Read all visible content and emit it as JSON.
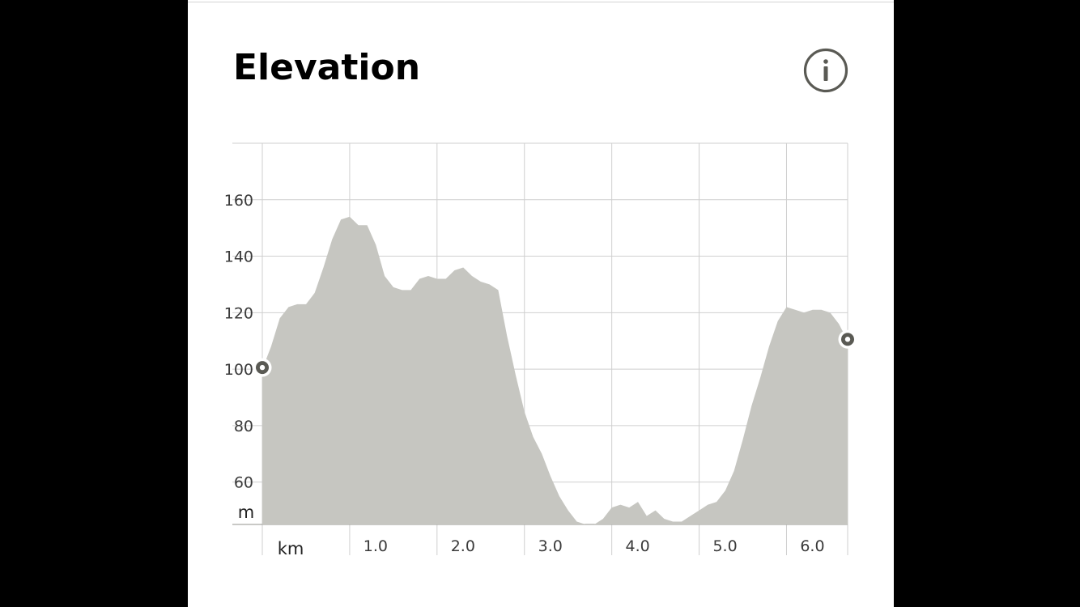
{
  "header": {
    "title": "Elevation",
    "info_icon": "info-circle-icon"
  },
  "colors": {
    "background": "#000000",
    "panel": "#ffffff",
    "area_fill": "#c6c6c1",
    "grid": "#cfcfcf",
    "icon": "#5a5a54"
  },
  "chart_data": {
    "type": "area",
    "title": "",
    "xlabel": "km",
    "ylabel": "m",
    "x_ticks": [
      "1.0",
      "2.0",
      "3.0",
      "4.0",
      "5.0",
      "6.0"
    ],
    "y_ticks": [
      "60",
      "80",
      "100",
      "120",
      "140",
      "160"
    ],
    "xlim": [
      0,
      6.7
    ],
    "ylim": [
      45,
      180
    ],
    "grid": true,
    "markers": [
      "start",
      "end"
    ],
    "series": [
      {
        "x": [
          0,
          0.1,
          0.2,
          0.3,
          0.4,
          0.5,
          0.6,
          0.7,
          0.8,
          0.9,
          1.0,
          1.1,
          1.2,
          1.3,
          1.4,
          1.5,
          1.6,
          1.7,
          1.8,
          1.9,
          2.0,
          2.1,
          2.2,
          2.3,
          2.4,
          2.5,
          2.6,
          2.7,
          2.8,
          2.9,
          3.0,
          3.1,
          3.2,
          3.3,
          3.4,
          3.5,
          3.6,
          3.7,
          3.8,
          3.9,
          4.0,
          4.1,
          4.2,
          4.3,
          4.4,
          4.5,
          4.6,
          4.7,
          4.8,
          4.9,
          5.0,
          5.1,
          5.2,
          5.3,
          5.4,
          5.5,
          5.6,
          5.7,
          5.8,
          5.9,
          6.0,
          6.1,
          6.2,
          6.3,
          6.4,
          6.5,
          6.6,
          6.7
        ],
        "y": [
          100,
          108,
          118,
          122,
          123,
          123,
          127,
          136,
          146,
          153,
          154,
          151,
          151,
          144,
          133,
          129,
          128,
          128,
          132,
          133,
          132,
          132,
          135,
          136,
          133,
          131,
          130,
          128,
          112,
          98,
          85,
          76,
          70,
          62,
          55,
          50,
          46,
          45,
          45,
          47,
          51,
          52,
          51,
          53,
          48,
          50,
          47,
          46,
          46,
          48,
          50,
          52,
          53,
          57,
          64,
          75,
          87,
          97,
          108,
          117,
          122,
          121,
          120,
          121,
          121,
          120,
          116,
          110
        ]
      }
    ]
  }
}
